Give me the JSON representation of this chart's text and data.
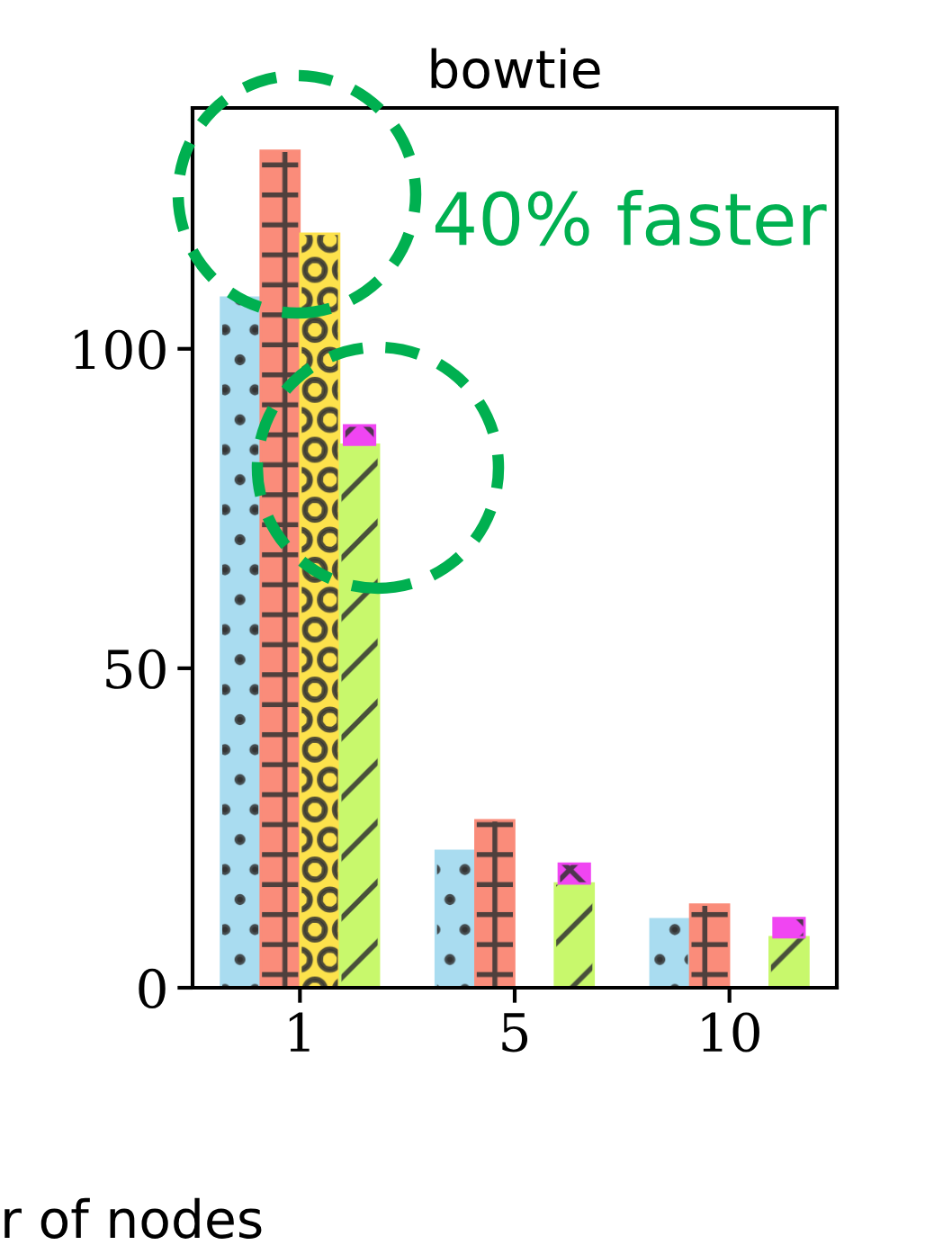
{
  "chart_data": {
    "type": "bar",
    "title": "bowtie",
    "xlabel": "r of nodes",
    "categories": [
      "1",
      "5",
      "10"
    ],
    "ylim": [
      0,
      137.7
    ],
    "yticks": [
      0,
      50,
      100
    ],
    "series": [
      {
        "color": "#a9dcf0",
        "values": [
          108,
          21.4,
          10.7
        ]
      },
      {
        "color": "#fa8c7a",
        "values": [
          131,
          26.2,
          13
        ]
      },
      {
        "color": "#fde24c",
        "values": [
          118,
          null,
          null
        ]
      },
      {
        "color": "#c8f86c",
        "values": [
          85,
          16.3,
          7.9
        ]
      },
      {
        "color": "#f045f2",
        "values": [
          3,
          3.1,
          3
        ],
        "base": [
          85,
          16.3,
          7.9
        ]
      }
    ],
    "annotations": [
      "40% faster"
    ],
    "grid": false,
    "legend": false
  }
}
